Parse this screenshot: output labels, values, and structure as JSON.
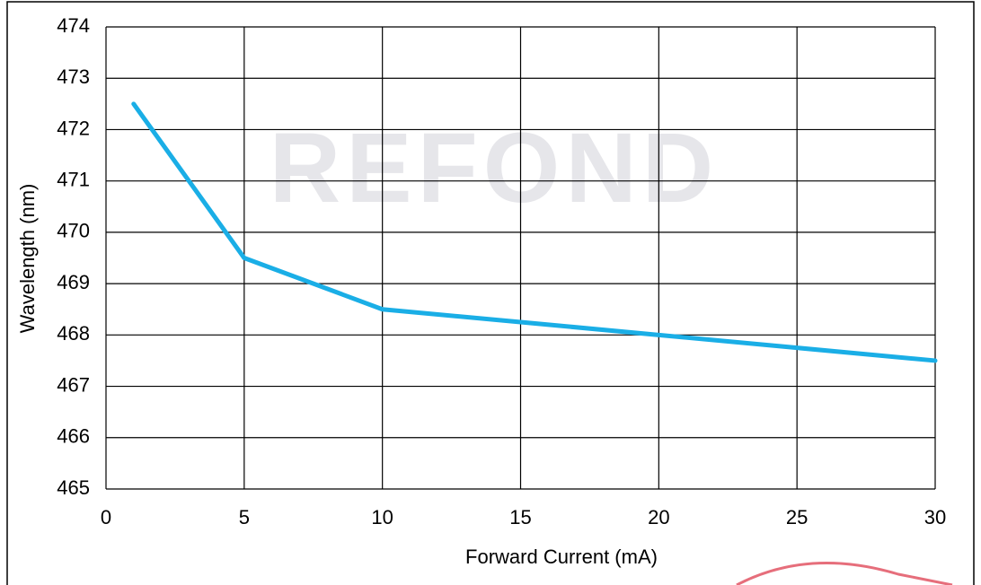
{
  "chart_data": {
    "type": "line",
    "watermark": "REFOND",
    "x_label": "Forward Current (mA)",
    "y_label": "Wavelength (nm)",
    "x": [
      1,
      5,
      10,
      15,
      20,
      25,
      30
    ],
    "series": [
      {
        "color": "#1aaee6",
        "values": [
          472.5,
          469.5,
          468.5,
          468.25,
          468,
          467.75,
          467.5
        ]
      }
    ],
    "xlim": [
      0,
      30
    ],
    "xticks": [
      0,
      5,
      10,
      15,
      20,
      25,
      30
    ],
    "ylim": [
      465,
      474
    ],
    "yticks": [
      465,
      466,
      467,
      468,
      469,
      470,
      471,
      472,
      473,
      474
    ],
    "grid": true
  }
}
